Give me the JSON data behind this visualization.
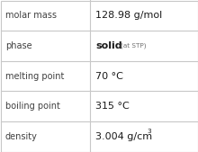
{
  "rows": [
    {
      "label": "molar mass",
      "value_normal": "128.98 g/mol",
      "value_bold": "",
      "value_small": "",
      "value_super": "",
      "type": "normal"
    },
    {
      "label": "phase",
      "value_normal": "",
      "value_bold": "solid",
      "value_small": "(at STP)",
      "value_super": "",
      "type": "phase"
    },
    {
      "label": "melting point",
      "value_normal": "70 °C",
      "value_bold": "",
      "value_small": "",
      "value_super": "",
      "type": "normal"
    },
    {
      "label": "boiling point",
      "value_normal": "315 °C",
      "value_bold": "",
      "value_small": "",
      "value_super": "",
      "type": "normal"
    },
    {
      "label": "density",
      "value_normal": "3.004 g/cm",
      "value_bold": "",
      "value_small": "",
      "value_super": "3",
      "type": "super"
    }
  ],
  "bg_color": "#ffffff",
  "border_color": "#c8c8c8",
  "label_color": "#404040",
  "value_color": "#1a1a1a",
  "small_color": "#707070",
  "col_split": 0.455,
  "label_fontsize": 7.0,
  "value_fontsize": 8.0,
  "small_fontsize": 5.2,
  "super_fontsize": 5.2
}
